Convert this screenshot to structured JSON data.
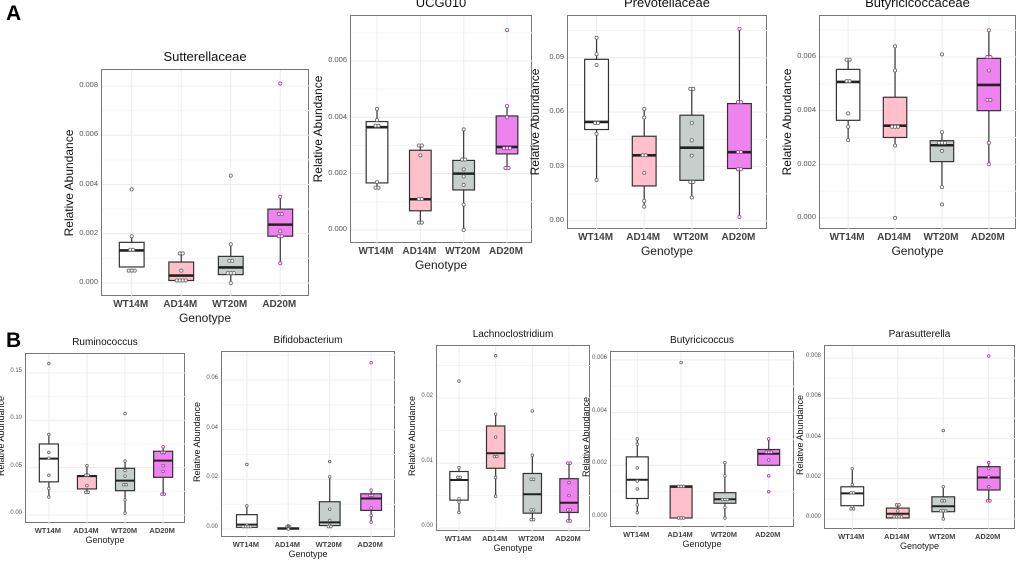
{
  "panel_labels": [
    "A",
    "B"
  ],
  "colors": {
    "WT14M": "#ffffff",
    "AD14M": "#ffc0cb",
    "WT20M": "#c6cfcc",
    "AD20M": "#ee82ee",
    "box_line": "#333333",
    "point_default": "#666666",
    "point_AD20M": "#9b3d9b",
    "grid": "#ececec"
  },
  "chart_data": [
    {
      "type": "box",
      "title": "Sutterellaceae",
      "xlabel": "Genotype",
      "ylabel": "Relative Abundance",
      "categories": [
        "WT14M",
        "AD14M",
        "WT20M",
        "AD20M"
      ],
      "ylim": [
        -0.00057,
        0.00865
      ],
      "yticks": [
        "0.000",
        "0.002",
        "0.004",
        "0.006",
        "0.008"
      ],
      "groups": [
        {
          "q1": 0.00065,
          "median": 0.00132,
          "q3": 0.00165,
          "whisker_low": 0.00065,
          "whisker_high": 0.0019,
          "points": [
            0.0038,
            0.0019,
            0.00135,
            0.00135,
            0.0005,
            0.0005,
            0.0005
          ]
        },
        {
          "q1": 0.0001,
          "median": 0.0003,
          "q3": 0.00085,
          "whisker_low": 0.0001,
          "whisker_high": 0.0012,
          "points": [
            0.0012,
            0.0012,
            0.0005,
            0.0001,
            0.0001,
            0.0001,
            0.0001
          ]
        },
        {
          "q1": 0.00034,
          "median": 0.00063,
          "q3": 0.00108,
          "whisker_low": 0.0,
          "whisker_high": 0.00157,
          "points": [
            0.00436,
            0.00157,
            0.0009,
            0.0009,
            0.0004,
            0.0004,
            0.0004,
            0.0
          ]
        },
        {
          "q1": 0.0019,
          "median": 0.00237,
          "q3": 0.003,
          "whisker_low": 0.00082,
          "whisker_high": 0.0035,
          "points": [
            0.0081,
            0.0035,
            0.0028,
            0.0028,
            0.0021,
            0.0019,
            0.0019,
            0.0008
          ]
        }
      ]
    },
    {
      "type": "box",
      "title": "UCG010",
      "xlabel": "Genotype",
      "ylabel": "Relative Abundance",
      "categories": [
        "WT14M",
        "AD14M",
        "WT20M",
        "AD20M"
      ],
      "ylim": [
        -0.0005,
        0.0076
      ],
      "yticks": [
        "0.000",
        "0.002",
        "0.004",
        "0.006"
      ],
      "groups": [
        {
          "q1": 0.00167,
          "median": 0.00365,
          "q3": 0.00385,
          "whisker_low": 0.0015,
          "whisker_high": 0.0043,
          "points": [
            0.0043,
            0.0039,
            0.0037,
            0.0037,
            0.0017,
            0.0015,
            0.0015
          ]
        },
        {
          "q1": 0.00068,
          "median": 0.00109,
          "q3": 0.00283,
          "whisker_low": 0.00026,
          "whisker_high": 0.003,
          "points": [
            0.003,
            0.003,
            0.00265,
            0.0011,
            0.0011,
            0.00026,
            0.00026
          ]
        },
        {
          "q1": 0.00142,
          "median": 0.002,
          "q3": 0.00247,
          "whisker_low": 0.0,
          "whisker_high": 0.00357,
          "points": [
            0.00357,
            0.0025,
            0.0025,
            0.00215,
            0.0019,
            0.0016,
            0.0009,
            0.0
          ]
        },
        {
          "q1": 0.0027,
          "median": 0.00295,
          "q3": 0.00405,
          "whisker_low": 0.0022,
          "whisker_high": 0.0044,
          "points": [
            0.0071,
            0.0044,
            0.004,
            0.0029,
            0.0029,
            0.0029,
            0.0022,
            0.0022
          ]
        }
      ]
    },
    {
      "type": "box",
      "title": "Prevotellaceae",
      "xlabel": "Genotype",
      "ylabel": "Relative Abundance",
      "categories": [
        "WT14M",
        "AD14M",
        "WT20M",
        "AD20M"
      ],
      "ylim": [
        -0.005,
        0.113
      ],
      "yticks": [
        "0.00",
        "0.03",
        "0.06",
        "0.09"
      ],
      "groups": [
        {
          "q1": 0.0504,
          "median": 0.0546,
          "q3": 0.0891,
          "whisker_low": 0.0226,
          "whisker_high": 0.1009,
          "points": [
            0.101,
            0.092,
            0.086,
            0.054,
            0.054,
            0.048,
            0.0226
          ]
        },
        {
          "q1": 0.0193,
          "median": 0.0362,
          "q3": 0.0467,
          "whisker_low": 0.0079,
          "whisker_high": 0.0617,
          "points": [
            0.0617,
            0.057,
            0.0362,
            0.0362,
            0.0265,
            0.011,
            0.0079
          ]
        },
        {
          "q1": 0.0224,
          "median": 0.0404,
          "q3": 0.0583,
          "whisker_low": 0.0129,
          "whisker_high": 0.0728,
          "points": [
            0.0728,
            0.0728,
            0.054,
            0.0445,
            0.036,
            0.0215,
            0.0215,
            0.0129
          ]
        },
        {
          "q1": 0.0289,
          "median": 0.0379,
          "q3": 0.0647,
          "whisker_low": 0.0022,
          "whisker_high": 0.1059,
          "points": [
            0.1059,
            0.0655,
            0.0655,
            0.038,
            0.038,
            0.0285,
            0.0285,
            0.0022
          ]
        }
      ]
    },
    {
      "type": "box",
      "title": "Butyricicoccaceae",
      "xlabel": "Genotype",
      "ylabel": "Relative Abundance",
      "categories": [
        "WT14M",
        "AD14M",
        "WT20M",
        "AD20M"
      ],
      "ylim": [
        -0.00045,
        0.00753
      ],
      "yticks": [
        "0.000",
        "0.002",
        "0.004",
        "0.006"
      ],
      "groups": [
        {
          "q1": 0.00364,
          "median": 0.00507,
          "q3": 0.00554,
          "whisker_low": 0.00289,
          "whisker_high": 0.00588,
          "points": [
            0.0059,
            0.0059,
            0.0051,
            0.0051,
            0.0039,
            0.0034,
            0.0029
          ]
        },
        {
          "q1": 0.003,
          "median": 0.00344,
          "q3": 0.0045,
          "whisker_low": 0.00264,
          "whisker_high": 0.00639,
          "points": [
            0.0064,
            0.0055,
            0.0034,
            0.0034,
            0.0034,
            0.0027,
            0.0
          ]
        },
        {
          "q1": 0.0021,
          "median": 0.00271,
          "q3": 0.00288,
          "whisker_low": 0.00115,
          "whisker_high": 0.00323,
          "points": [
            0.0061,
            0.0032,
            0.0028,
            0.0028,
            0.0028,
            0.0025,
            0.00115,
            0.0005
          ]
        },
        {
          "q1": 0.004,
          "median": 0.00496,
          "q3": 0.00595,
          "whisker_low": 0.00197,
          "whisker_high": 0.00705,
          "points": [
            0.007,
            0.006,
            0.006,
            0.0055,
            0.0044,
            0.0044,
            0.0028,
            0.002
          ]
        }
      ]
    },
    {
      "type": "box",
      "title": "Ruminococcus",
      "xlabel": "Genotype",
      "ylabel": "Relative Abundance",
      "categories": [
        "WT14M",
        "AD14M",
        "WT20M",
        "AD20M"
      ],
      "ylim": [
        -0.0095,
        0.17
      ],
      "yticks": [
        "0.00",
        "0.05",
        "0.10",
        "0.15"
      ],
      "groups": [
        {
          "q1": 0.035,
          "median": 0.0595,
          "q3": 0.075,
          "whisker_low": 0.0194,
          "whisker_high": 0.085,
          "points": [
            0.16,
            0.085,
            0.066,
            0.06,
            0.042,
            0.028,
            0.019
          ]
        },
        {
          "q1": 0.0275,
          "median": 0.041,
          "q3": 0.0415,
          "whisker_low": 0.0236,
          "whisker_high": 0.0514,
          "points": [
            0.052,
            0.042,
            0.042,
            0.031,
            0.024,
            0.024
          ]
        },
        {
          "q1": 0.0257,
          "median": 0.0363,
          "q3": 0.0493,
          "whisker_low": 0.001,
          "whisker_high": 0.0574,
          "points": [
            0.107,
            0.057,
            0.047,
            0.041,
            0.032,
            0.032,
            0.016,
            0.002
          ]
        },
        {
          "q1": 0.0398,
          "median": 0.0574,
          "q3": 0.0673,
          "whisker_low": 0.022,
          "whisker_high": 0.072,
          "points": [
            0.072,
            0.066,
            0.066,
            0.052,
            0.046,
            0.022,
            0.022
          ]
        }
      ]
    },
    {
      "type": "box",
      "title": "Bifidobacterium",
      "xlabel": "Genotype",
      "ylabel": "Relative Abundance",
      "categories": [
        "WT14M",
        "AD14M",
        "WT20M",
        "AD20M"
      ],
      "ylim": [
        -0.0036,
        0.0713
      ],
      "yticks": [
        "0.00",
        "0.02",
        "0.04",
        "0.06"
      ],
      "groups": [
        {
          "q1": 0.0007,
          "median": 0.0018,
          "q3": 0.0058,
          "whisker_low": 0.0007,
          "whisker_high": 0.0096,
          "points": [
            0.026,
            0.0093,
            0.0015,
            0.001,
            0.001,
            0.001,
            0.001
          ]
        },
        {
          "q1": 0.0,
          "median": 0.0002,
          "q3": 0.0005,
          "whisker_low": 0.0,
          "whisker_high": 0.0012,
          "points": [
            0.0013,
            0.001,
            0.001,
            0.0008,
            0.0005,
            0.0002,
            0.0
          ]
        },
        {
          "q1": 0.0014,
          "median": 0.0027,
          "q3": 0.011,
          "whisker_low": 0.0008,
          "whisker_high": 0.021,
          "points": [
            0.0272,
            0.021,
            0.008,
            0.0035,
            0.0015,
            0.001,
            0.001
          ]
        },
        {
          "q1": 0.0075,
          "median": 0.0123,
          "q3": 0.0142,
          "whisker_low": 0.0028,
          "whisker_high": 0.0158,
          "points": [
            0.067,
            0.0157,
            0.0135,
            0.0135,
            0.0085,
            0.0055,
            0.0028
          ]
        }
      ]
    },
    {
      "type": "box",
      "title": "Lachnoclostridium",
      "xlabel": "Genotype",
      "ylabel": "Relative Abundance",
      "categories": [
        "WT14M",
        "AD14M",
        "WT20M",
        "AD20M"
      ],
      "ylim": [
        -0.0006,
        0.028
      ],
      "yticks": [
        "0.00",
        "0.01",
        "0.02"
      ],
      "groups": [
        {
          "q1": 0.0043,
          "median": 0.0074,
          "q3": 0.0087,
          "whisker_low": 0.0024,
          "whisker_high": 0.0094,
          "points": [
            0.0226,
            0.0093,
            0.0078,
            0.0078,
            0.0045,
            0.004,
            0.0024
          ]
        },
        {
          "q1": 0.0092,
          "median": 0.0115,
          "q3": 0.0157,
          "whisker_low": 0.0049,
          "whisker_high": 0.0175,
          "points": [
            0.0265,
            0.0175,
            0.014,
            0.011,
            0.011,
            0.0078,
            0.0049
          ]
        },
        {
          "q1": 0.0023,
          "median": 0.0052,
          "q3": 0.0084,
          "whisker_low": 0.0013,
          "whisker_high": 0.0112,
          "points": [
            0.018,
            0.0112,
            0.0075,
            0.0075,
            0.0028,
            0.0028,
            0.0013,
            0.0013
          ]
        },
        {
          "q1": 0.0024,
          "median": 0.0039,
          "q3": 0.0076,
          "whisker_low": 0.0011,
          "whisker_high": 0.01,
          "points": [
            0.01,
            0.01,
            0.007,
            0.005,
            0.0028,
            0.0028,
            0.0011,
            0.0011
          ]
        }
      ]
    },
    {
      "type": "box",
      "title": "Butyricicoccus",
      "xlabel": "Genotype",
      "ylabel": "Relative Abundance",
      "categories": [
        "WT14M",
        "AD14M",
        "WT20M",
        "AD20M"
      ],
      "ylim": [
        -0.00038,
        0.0063
      ],
      "yticks": [
        "0.000",
        "0.002",
        "0.004",
        "0.006"
      ],
      "groups": [
        {
          "q1": 0.00074,
          "median": 0.00145,
          "q3": 0.00232,
          "whisker_low": 0.00024,
          "whisker_high": 0.00305,
          "points": [
            0.003,
            0.0028,
            0.0019,
            0.0014,
            0.0011,
            0.0005,
            0.0002
          ]
        },
        {
          "q1": 0.0,
          "median": 0.00118,
          "q3": 0.00122,
          "whisker_low": 0.0,
          "whisker_high": 0.00122,
          "points": [
            0.0059,
            0.0012,
            0.0012,
            0.0012,
            0.0,
            0.0,
            0.0
          ]
        },
        {
          "q1": 0.00056,
          "median": 0.00071,
          "q3": 0.00096,
          "whisker_low": 0.0,
          "whisker_high": 0.00208,
          "points": [
            0.0021,
            0.0016,
            0.0007,
            0.0007,
            0.0007,
            0.0004,
            0.0
          ]
        },
        {
          "q1": 0.002,
          "median": 0.00244,
          "q3": 0.0026,
          "whisker_low": 0.002,
          "whisker_high": 0.003,
          "points": [
            0.003,
            0.0025,
            0.0025,
            0.0025,
            0.0022,
            0.0016,
            0.001
          ]
        }
      ]
    },
    {
      "type": "box",
      "title": "Parasutterella",
      "xlabel": "Genotype",
      "ylabel": "Relative Abundance",
      "categories": [
        "WT14M",
        "AD14M",
        "WT20M",
        "AD20M"
      ],
      "ylim": [
        -0.00055,
        0.0086
      ],
      "yticks": [
        "0.000",
        "0.002",
        "0.004",
        "0.006",
        "0.008"
      ],
      "groups": [
        {
          "q1": 0.00066,
          "median": 0.00127,
          "q3": 0.0016,
          "whisker_low": 0.00056,
          "whisker_high": 0.00256,
          "points": [
            0.0025,
            0.0017,
            0.0013,
            0.0013,
            0.0006,
            0.0005,
            0.0005
          ]
        },
        {
          "q1": 5e-05,
          "median": 0.00026,
          "q3": 0.00054,
          "whisker_low": 5e-05,
          "whisker_high": 0.0007,
          "points": [
            0.0007,
            0.0007,
            0.0004,
            0.0001,
            0.0001,
            0.0001,
            0.0001
          ]
        },
        {
          "q1": 0.00036,
          "median": 0.00063,
          "q3": 0.0011,
          "whisker_low": 0.0,
          "whisker_high": 0.0016,
          "points": [
            0.0044,
            0.0016,
            0.0009,
            0.0009,
            0.0004,
            0.0004,
            0.0004,
            0.0
          ]
        },
        {
          "q1": 0.00144,
          "median": 0.00206,
          "q3": 0.0026,
          "whisker_low": 0.00087,
          "whisker_high": 0.0028,
          "points": [
            0.0081,
            0.0028,
            0.0025,
            0.0021,
            0.0016,
            0.0009,
            0.0009
          ]
        }
      ]
    }
  ]
}
